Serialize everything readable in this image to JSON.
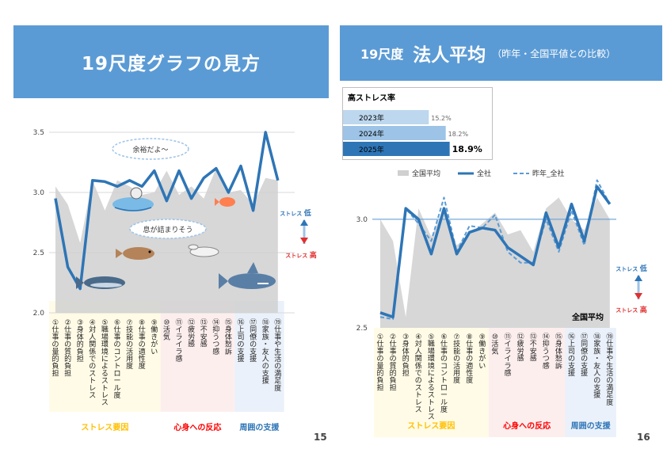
{
  "slide15": {
    "title": "19尺度グラフの見方",
    "page": "15",
    "bubble_good": "余裕だよ～",
    "bubble_bad": "息が詰まりそう",
    "stress_low": "ストレス 低",
    "stress_high": "ストレス 高",
    "yticks": [
      "3.5",
      "3.0",
      "2.5",
      "2.0"
    ]
  },
  "slide16": {
    "num": "19尺度",
    "title": "法人平均",
    "subtitle": "（昨年・全国平値との比較）",
    "page": "16",
    "legend": [
      "全国平均",
      "全社",
      "昨年_全社"
    ],
    "national_label": "全国平均",
    "stress_low": "ストレス 低",
    "stress_high": "ストレス 高",
    "yticks": [
      "3.0",
      "2.5"
    ],
    "high_stress": {
      "title": "高ストレス率",
      "rows": [
        {
          "year": "2023年",
          "value": 15.2,
          "label": "15.2%",
          "color": "#bdd7ee"
        },
        {
          "year": "2024年",
          "value": 18.2,
          "label": "18.2%",
          "color": "#9dc3e6"
        },
        {
          "year": "2025年",
          "value": 18.9,
          "label": "18.9%",
          "color": "#2e75b6"
        }
      ]
    }
  },
  "categories": [
    "①仕事の量的負担",
    "②仕事の質的負担",
    "③身体的負担",
    "④対人関係でのストレス",
    "⑤職場環境によるストレス",
    "⑥仕事のコントロール度",
    "⑦技能の活用度",
    "⑧仕事の適性度",
    "⑨働きがい",
    "⑩活気",
    "⑪イライラ感",
    "⑫疲労感",
    "⑬不安感",
    "⑭抑うつ感",
    "⑮身体愁訴",
    "⑯上司の支援",
    "⑰同僚の支援",
    "⑱家族・友人の支援",
    "⑲仕事や生活の満足度"
  ],
  "groups": [
    {
      "label": "ストレス要因",
      "color": "#ffc000",
      "bg": "#fffbe6"
    },
    {
      "label": "心身への反応",
      "color": "#ff0000",
      "bg": "#fdeeee"
    },
    {
      "label": "周囲の支援",
      "color": "#2e75b6",
      "bg": "#eaf1fa"
    }
  ],
  "chart_data": [
    {
      "type": "line",
      "ylim": [
        2.0,
        3.5
      ],
      "series": [
        {
          "values": [
            3.05,
            2.9,
            2.58,
            3.1,
            2.85,
            3.1,
            3.05,
            2.98,
            3.0,
            3.18,
            2.98,
            3.05,
            2.95,
            3.2,
            3.0,
            3.02,
            2.9,
            3.12,
            3.1
          ]
        },
        {
          "values": [
            2.95,
            2.38,
            2.2,
            3.1,
            3.09,
            3.05,
            3.1,
            3.05,
            3.18,
            2.93,
            3.18,
            2.95,
            3.12,
            3.2,
            3.0,
            3.22,
            2.85,
            3.5,
            3.1
          ]
        }
      ]
    },
    {
      "type": "line",
      "ylim": [
        2.5,
        3.2
      ],
      "series": [
        {
          "name": "全国平均",
          "values": [
            3.0,
            2.9,
            2.55,
            3.05,
            2.92,
            3.05,
            2.88,
            2.93,
            2.98,
            3.03,
            2.93,
            2.95,
            2.85,
            3.05,
            3.1,
            3.0,
            2.95,
            3.1,
            3.0
          ]
        },
        {
          "name": "全社",
          "values": [
            2.57,
            2.55,
            3.05,
            3.0,
            2.84,
            3.05,
            2.84,
            2.94,
            2.96,
            2.95,
            2.87,
            2.83,
            2.79,
            3.03,
            2.87,
            3.07,
            2.9,
            3.15,
            3.07
          ]
        },
        {
          "name": "昨年_全社",
          "values": [
            2.55,
            2.54,
            3.05,
            2.98,
            2.9,
            3.1,
            2.85,
            2.97,
            2.96,
            3.02,
            2.85,
            2.8,
            2.8,
            3.0,
            2.85,
            3.04,
            2.88,
            3.18,
            3.07
          ]
        }
      ]
    }
  ]
}
